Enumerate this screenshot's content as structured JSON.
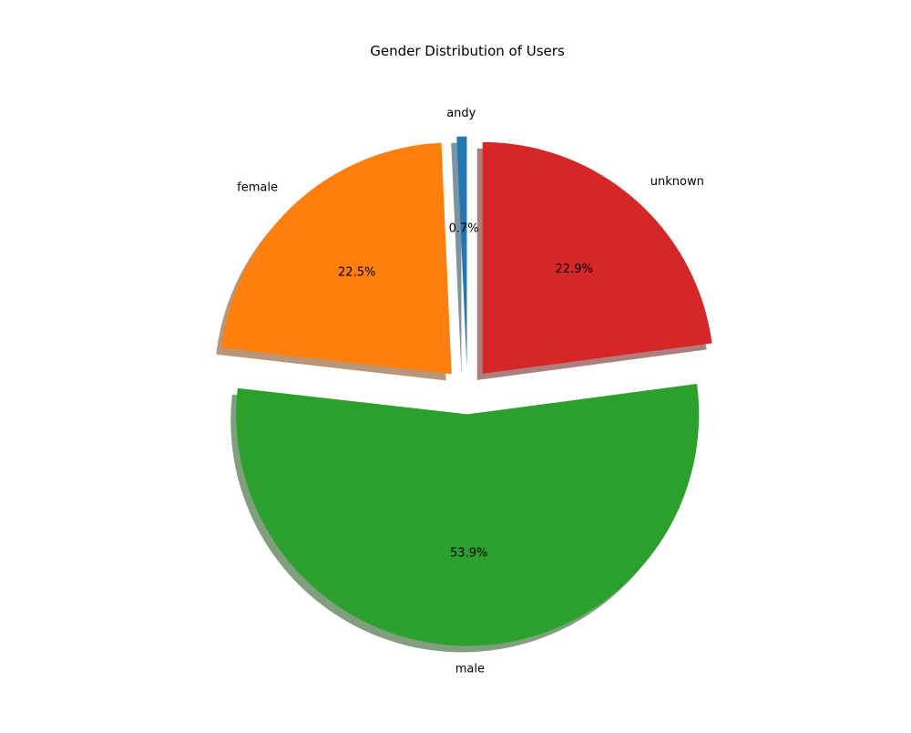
{
  "chart_data": {
    "type": "pie",
    "title": "Gender Distribution of Users",
    "slices": [
      {
        "label": "andy",
        "value": 0.7,
        "display": "0.7%",
        "color": "#1f77b4",
        "exploded": true
      },
      {
        "label": "female",
        "value": 22.5,
        "display": "22.5%",
        "color": "#ff7f0e",
        "exploded": true
      },
      {
        "label": "male",
        "value": 53.9,
        "display": "53.9%",
        "color": "#2ca02c",
        "exploded": true
      },
      {
        "label": "unknown",
        "value": 22.9,
        "display": "22.9%",
        "color": "#d62728",
        "exploded": true
      }
    ],
    "shadow": true,
    "start_angle_deg": 90,
    "direction": "counterclockwise",
    "legend": "none"
  }
}
